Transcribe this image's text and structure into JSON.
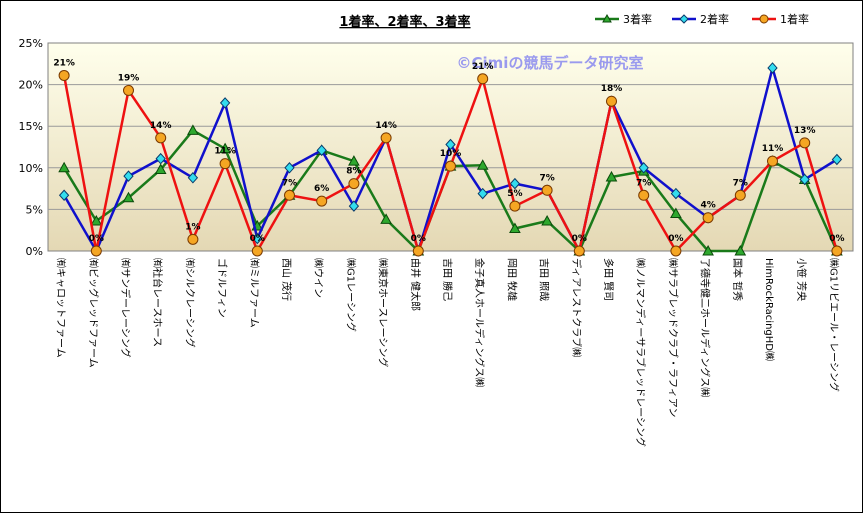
{
  "chart_data": {
    "type": "line",
    "title": "1着率、2着率、3着率",
    "watermark": "©Cimiの競馬データ研究室",
    "ylim": [
      0,
      25
    ],
    "yticks": [
      "0%",
      "5%",
      "10%",
      "15%",
      "20%",
      "25%"
    ],
    "grid": "horizontal",
    "legend_position": "top-right",
    "categories": [
      "㈲キャロットファーム",
      "㈲ビッグレッドファーム",
      "㈲サンデーレーシング",
      "㈲社台レースホース",
      "㈲シルクレーシング",
      "ゴドルフィン",
      "㈲ミルファーム",
      "西山 茂行",
      "㈱ウイン",
      "㈱G1レーシング",
      "㈱東京ホースレーシング",
      "由井 健太郎",
      "吉田 勝己",
      "金子真人ホールディングス㈱",
      "岡田 牧雄",
      "吉田 照哉",
      "ディアレストクラブ㈱",
      "多田 賢司",
      "㈱ノルマンディーサラブレッドレーシング",
      "㈱サラブレッドクラブ・ラフィアン",
      "了德寺健二ホールディングス㈱",
      "国本 哲秀",
      "HimRockRacingHD㈱",
      "小笹 芳央",
      "㈱G1リビエール・レーシング"
    ],
    "series": [
      {
        "name": "3着率",
        "color": "#1a7a1a",
        "marker": "triangle",
        "marker_color": "#2ea82e",
        "values": [
          10.0,
          3.6,
          6.4,
          9.8,
          14.5,
          12.3,
          3.0,
          6.7,
          12.1,
          10.8,
          3.8,
          0,
          10.2,
          10.3,
          2.7,
          3.6,
          0,
          8.9,
          9.6,
          4.5,
          0,
          0,
          10.8,
          8.6,
          0
        ]
      },
      {
        "name": "2着率",
        "color": "#1010cc",
        "marker": "diamond",
        "marker_color": "#33ddee",
        "values": [
          6.7,
          0,
          9.0,
          11.1,
          8.8,
          17.8,
          1.5,
          10.0,
          12.1,
          5.4,
          13.6,
          0,
          12.8,
          6.9,
          8.1,
          7.3,
          0,
          18.0,
          10.0,
          6.9,
          4.0,
          6.7,
          22.0,
          8.6,
          11.0
        ]
      },
      {
        "name": "1着率",
        "color": "#ee1111",
        "marker": "circle",
        "marker_color": "#f5a623",
        "values": [
          21.1,
          0,
          19.3,
          13.6,
          1.4,
          10.5,
          0,
          6.7,
          6.0,
          8.1,
          13.6,
          0,
          10.2,
          20.7,
          5.4,
          7.3,
          0,
          18.0,
          6.7,
          0,
          4.0,
          6.7,
          10.8,
          13.0,
          0
        ]
      }
    ],
    "point_labels": [
      "21%",
      "0%",
      "19%",
      "14%",
      "1%",
      "11%",
      "0%",
      "7%",
      "6%",
      "8%",
      "14%",
      "0%",
      "10%",
      "21%",
      "5%",
      "7%",
      "0%",
      "18%",
      "7%",
      "0%",
      "4%",
      "7%",
      "11%",
      "13%",
      "0%"
    ]
  }
}
